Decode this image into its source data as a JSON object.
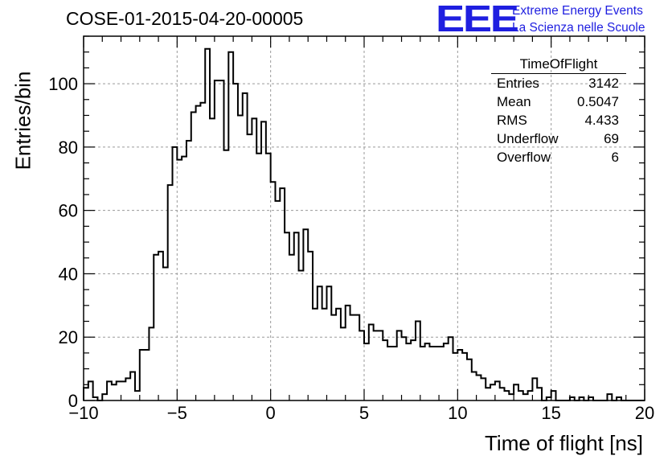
{
  "chart_data": {
    "type": "histogram",
    "title": "COSE-01-2015-04-20-00005",
    "xlabel": "Time of flight [ns]",
    "ylabel": "Entries/bin",
    "xlim": [
      -10,
      20
    ],
    "ylim": [
      0,
      115
    ],
    "bin_width": 0.25,
    "x_ticks": [
      -10,
      -5,
      0,
      5,
      10,
      15,
      20
    ],
    "x_tick_labels": [
      "−10",
      "−5",
      "0",
      "5",
      "10",
      "15",
      "20"
    ],
    "y_ticks": [
      0,
      20,
      40,
      60,
      80,
      100
    ],
    "y_tick_labels": [
      "0",
      "20",
      "40",
      "60",
      "80",
      "100"
    ],
    "grid": true,
    "bins": [
      [
        -10.0,
        4
      ],
      [
        -9.75,
        6
      ],
      [
        -9.5,
        1
      ],
      [
        -9.25,
        0
      ],
      [
        -9.0,
        2
      ],
      [
        -8.75,
        6
      ],
      [
        -8.5,
        5
      ],
      [
        -8.25,
        6
      ],
      [
        -8.0,
        6
      ],
      [
        -7.75,
        7
      ],
      [
        -7.5,
        9
      ],
      [
        -7.25,
        3
      ],
      [
        -7.0,
        16
      ],
      [
        -6.75,
        16
      ],
      [
        -6.5,
        23
      ],
      [
        -6.25,
        46
      ],
      [
        -6.0,
        47
      ],
      [
        -5.75,
        42
      ],
      [
        -5.5,
        68
      ],
      [
        -5.25,
        80
      ],
      [
        -5.0,
        76
      ],
      [
        -4.75,
        77
      ],
      [
        -4.5,
        82
      ],
      [
        -4.25,
        91
      ],
      [
        -4.0,
        93
      ],
      [
        -3.75,
        94
      ],
      [
        -3.5,
        111
      ],
      [
        -3.25,
        89
      ],
      [
        -3.0,
        101
      ],
      [
        -2.75,
        101
      ],
      [
        -2.5,
        79
      ],
      [
        -2.25,
        110
      ],
      [
        -2.0,
        100
      ],
      [
        -1.75,
        90
      ],
      [
        -1.5,
        97
      ],
      [
        -1.25,
        84
      ],
      [
        -1.0,
        89
      ],
      [
        -0.75,
        78
      ],
      [
        -0.5,
        88
      ],
      [
        -0.25,
        78
      ],
      [
        0.0,
        69
      ],
      [
        0.25,
        63
      ],
      [
        0.5,
        67
      ],
      [
        0.75,
        53
      ],
      [
        1.0,
        46
      ],
      [
        1.25,
        53
      ],
      [
        1.5,
        41
      ],
      [
        1.75,
        54
      ],
      [
        2.0,
        47
      ],
      [
        2.25,
        29
      ],
      [
        2.5,
        36
      ],
      [
        2.75,
        29
      ],
      [
        3.0,
        36
      ],
      [
        3.25,
        27
      ],
      [
        3.5,
        29
      ],
      [
        3.75,
        23
      ],
      [
        4.0,
        30
      ],
      [
        4.25,
        27
      ],
      [
        4.5,
        27
      ],
      [
        4.75,
        22
      ],
      [
        5.0,
        18
      ],
      [
        5.25,
        24
      ],
      [
        5.5,
        22
      ],
      [
        5.75,
        22
      ],
      [
        6.0,
        19
      ],
      [
        6.25,
        17
      ],
      [
        6.5,
        17
      ],
      [
        6.75,
        22
      ],
      [
        7.0,
        20
      ],
      [
        7.25,
        18
      ],
      [
        7.5,
        19
      ],
      [
        7.75,
        25
      ],
      [
        8.0,
        17
      ],
      [
        8.25,
        18
      ],
      [
        8.5,
        17
      ],
      [
        8.75,
        17
      ],
      [
        9.0,
        17
      ],
      [
        9.25,
        18
      ],
      [
        9.5,
        20
      ],
      [
        9.75,
        15
      ],
      [
        10.0,
        16
      ],
      [
        10.25,
        15
      ],
      [
        10.5,
        13
      ],
      [
        10.75,
        9
      ],
      [
        11.0,
        8
      ],
      [
        11.25,
        7
      ],
      [
        11.5,
        4
      ],
      [
        11.75,
        5
      ],
      [
        12.0,
        6
      ],
      [
        12.25,
        4
      ],
      [
        12.5,
        3
      ],
      [
        12.75,
        2
      ],
      [
        13.0,
        5
      ],
      [
        13.25,
        3
      ],
      [
        13.5,
        2
      ],
      [
        13.75,
        3
      ],
      [
        14.0,
        7
      ],
      [
        14.25,
        4
      ],
      [
        14.5,
        0
      ],
      [
        14.75,
        1
      ],
      [
        15.0,
        3
      ],
      [
        15.25,
        0
      ],
      [
        15.5,
        0
      ],
      [
        15.75,
        0
      ],
      [
        16.0,
        1
      ],
      [
        16.25,
        0
      ],
      [
        16.5,
        1
      ],
      [
        16.75,
        0
      ],
      [
        17.0,
        1
      ],
      [
        17.25,
        0
      ],
      [
        17.5,
        0
      ],
      [
        17.75,
        0
      ],
      [
        18.0,
        2
      ],
      [
        18.25,
        0
      ],
      [
        18.5,
        1
      ],
      [
        18.75,
        0
      ],
      [
        19.0,
        0
      ],
      [
        19.25,
        0
      ],
      [
        19.5,
        0
      ],
      [
        19.75,
        0
      ]
    ]
  },
  "stats_box": {
    "title": "TimeOfFlight",
    "rows": [
      {
        "label": "Entries",
        "value": "3142"
      },
      {
        "label": "Mean",
        "value": "0.5047"
      },
      {
        "label": "RMS",
        "value": "4.433"
      },
      {
        "label": "Underflow",
        "value": "69"
      },
      {
        "label": "Overflow",
        "value": "6"
      }
    ]
  },
  "logo": {
    "mark": "EEE",
    "line1": "Extreme Energy Events",
    "line2": "La Scienza nelle Scuole",
    "color": "#1f1fe0"
  }
}
